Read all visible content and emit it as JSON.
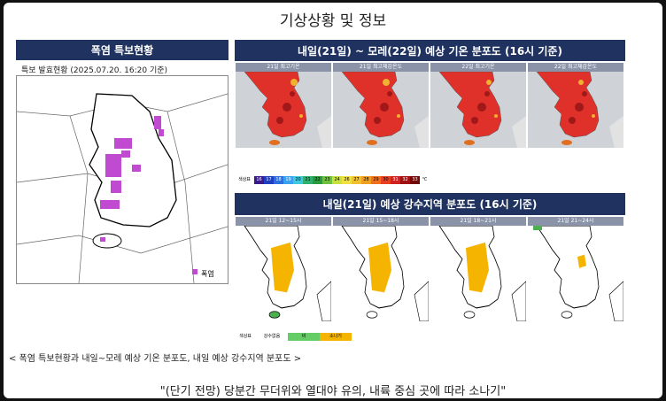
{
  "title": "기상상황 및 정보",
  "warning_panel": {
    "header": "폭염 특보현황",
    "subtitle": "특보 발효현황 (2025.07.20. 16:20 기준)",
    "legend": "폭염"
  },
  "temperature_panel": {
    "header": "내일(21일) ~ 모레(22일) 예상 기온 분포도 (16시 기준)",
    "maps": [
      "21일 최고기온",
      "21일 최고체감온도",
      "22일 최고기온",
      "22일 최고체감온도"
    ],
    "scale_label": "색상표",
    "scale": [
      16,
      17,
      18,
      19,
      20,
      21,
      22,
      23,
      24,
      26,
      27,
      28,
      29,
      30,
      31,
      32,
      33
    ],
    "unit": "℃"
  },
  "rain_panel": {
    "header": "내일(21일) 예상 강수지역 분포도 (16시 기준)",
    "maps": [
      "21일 12~15시",
      "21일 15~18시",
      "21일 18~21시",
      "21일 21~24시"
    ],
    "legend": [
      "색상표",
      "강수없음",
      "비",
      "소나기"
    ]
  },
  "caption": "< 폭염 특보현황과 내일~모레 예상 기온 분포도, 내일 예상 강수지역 분포도 >",
  "headline": "\"(단기 전망) 당분간 무더위와 열대야 유의, 내륙 중심 곳에 따라 소나기\""
}
